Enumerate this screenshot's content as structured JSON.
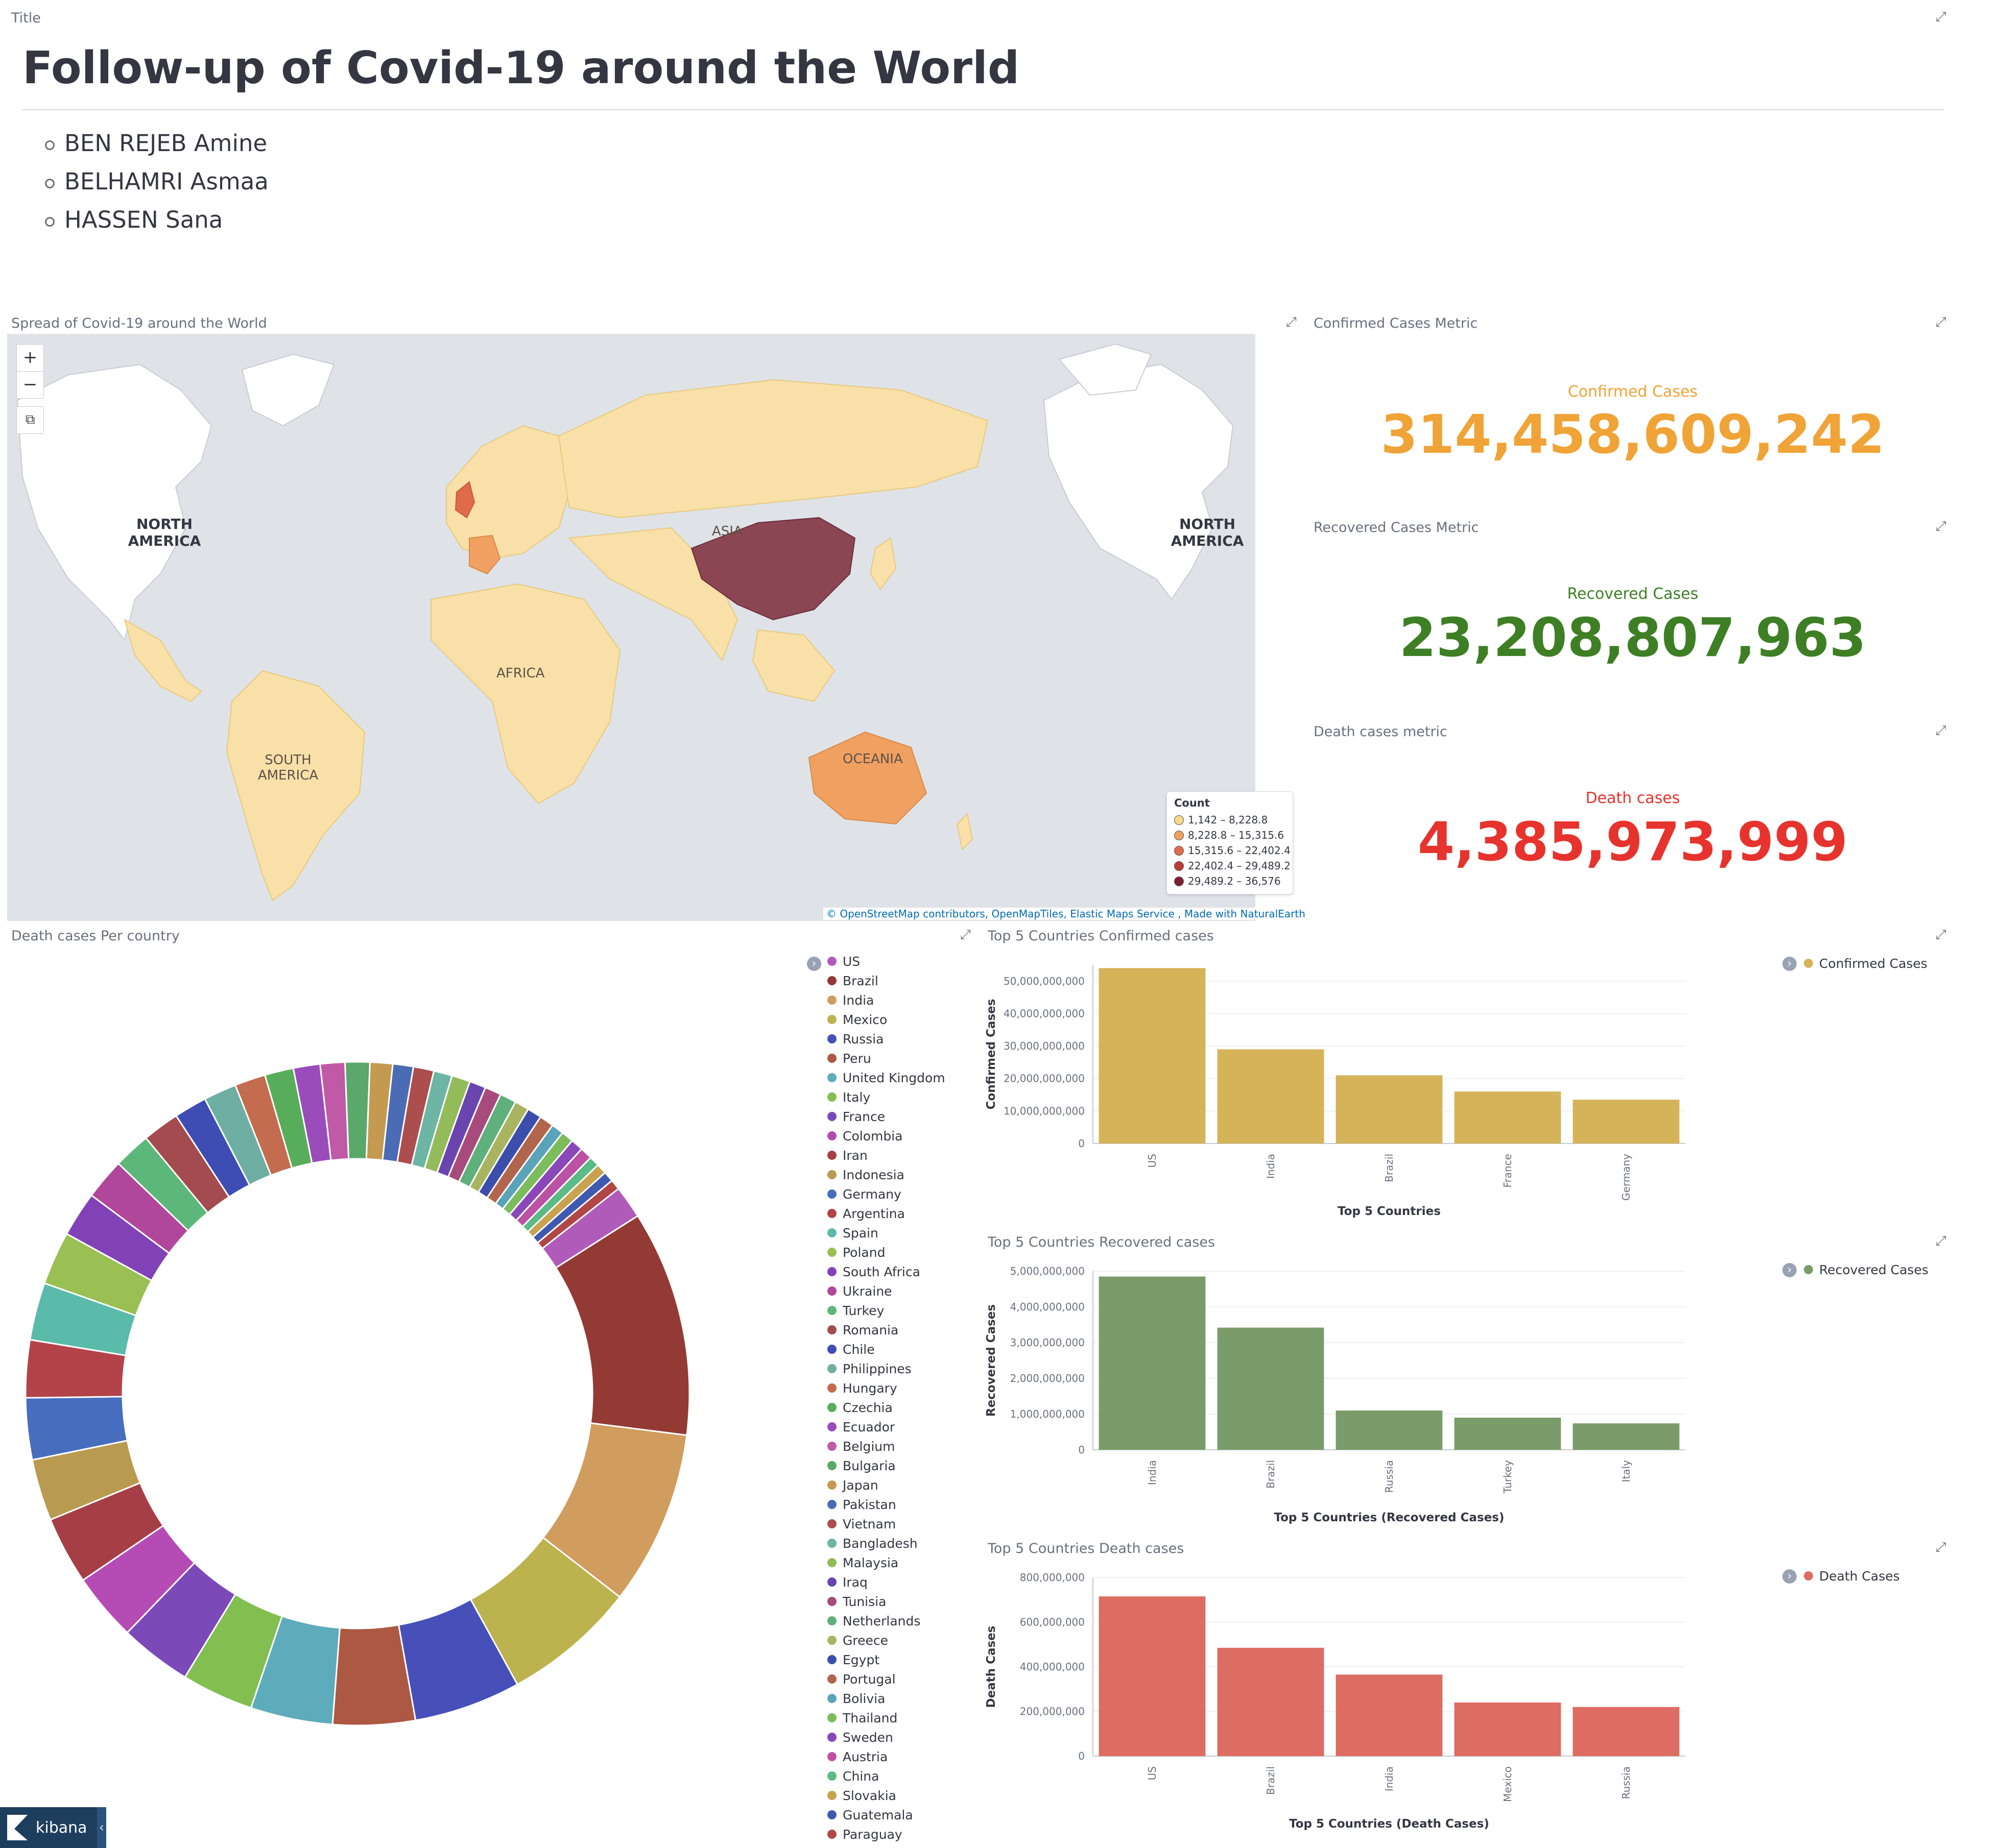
{
  "title_panel": {
    "label": "Title",
    "heading": "Follow-up of Covid-19 around the World",
    "authors": [
      "BEN REJEB Amine",
      "BELHAMRI Asmaa",
      "HASSEN Sana"
    ]
  },
  "map_panel": {
    "title": "Spread of Covid-19 around the World",
    "zoom_in": "+",
    "zoom_out": "−",
    "crop_icon": "crop-icon",
    "continent_labels": [
      "NORTH AMERICA",
      "ASIA",
      "AFRICA",
      "SOUTH AMERICA",
      "OCEANIA",
      "NORTH AMERICA"
    ],
    "legend": {
      "title": "Count",
      "items": [
        {
          "label": "1,142 – 8,228.8",
          "color": "#f5d88a"
        },
        {
          "label": "8,228.8 – 15,315.6",
          "color": "#f0a061"
        },
        {
          "label": "15,315.6 – 22,402.4",
          "color": "#e06b4b"
        },
        {
          "label": "22,402.4 – 29,489.2",
          "color": "#bf3a3a"
        },
        {
          "label": "29,489.2 – 36,576",
          "color": "#7d1e33"
        }
      ]
    },
    "attribution": "© OpenStreetMap contributors, OpenMapTiles, Elastic Maps Service , Made with NaturalEarth"
  },
  "metrics": {
    "confirmed": {
      "panel_title": "Confirmed Cases Metric",
      "label": "Confirmed Cases",
      "value": "314,458,609,242",
      "color": "#f0a336"
    },
    "recovered": {
      "panel_title": "Recovered Cases Metric",
      "label": "Recovered Cases",
      "value": "23,208,807,963",
      "color": "#3e7f25"
    },
    "death": {
      "panel_title": "Death cases metric",
      "label": "Death cases",
      "value": "4,385,973,999",
      "color": "#e7332d"
    }
  },
  "donut_panel": {
    "title": "Death cases Per country",
    "legend": [
      "US",
      "Brazil",
      "India",
      "Mexico",
      "Russia",
      "Peru",
      "United Kingdom",
      "Italy",
      "France",
      "Colombia",
      "Iran",
      "Indonesia",
      "Germany",
      "Argentina",
      "Spain",
      "Poland",
      "South Africa",
      "Ukraine",
      "Turkey",
      "Romania",
      "Chile",
      "Philippines",
      "Hungary",
      "Czechia",
      "Ecuador",
      "Belgium",
      "Bulgaria",
      "Japan",
      "Pakistan",
      "Vietnam",
      "Bangladesh",
      "Malaysia",
      "Iraq",
      "Tunisia",
      "Netherlands",
      "Greece",
      "Egypt",
      "Portugal",
      "Bolivia",
      "Thailand",
      "Sweden",
      "Austria",
      "China",
      "Slovakia",
      "Guatemala",
      "Paraguay"
    ],
    "palette": [
      "#b05bb9",
      "#933a35",
      "#d09d5f",
      "#bcb24e",
      "#4650b8",
      "#ac5843",
      "#5eabbb",
      "#82be50",
      "#7b4ab8",
      "#b54bb5",
      "#a63f45",
      "#b99a51",
      "#476dbf",
      "#b34348",
      "#5bbbaa",
      "#9abf53",
      "#8242b7",
      "#b0479a",
      "#5cb87a",
      "#a34b4f",
      "#3e4db3",
      "#6fafa3",
      "#c46c4f",
      "#58ad5a",
      "#9b4cbb",
      "#c05aa7",
      "#5aa86a",
      "#c39a50",
      "#4b6bb5",
      "#ac4e4e",
      "#6db5a4",
      "#93bb5a",
      "#6a45b0",
      "#a74a7c",
      "#5fb07c",
      "#a8b45f",
      "#3c4eac",
      "#b2654d",
      "#5ba3b8",
      "#7cbc5c",
      "#8a47b8",
      "#bc52a3",
      "#5abb86",
      "#c8a24f",
      "#4059b0",
      "#b04646"
    ]
  },
  "charts": [
    {
      "panel_title": "Top 5 Countries Confirmed cases",
      "legend_label": "Confirmed Cases",
      "color": "#d4b359",
      "chart_data": {
        "type": "bar",
        "categories": [
          "US",
          "India",
          "Brazil",
          "France",
          "Germany"
        ],
        "series": [
          {
            "name": "Confirmed Cases",
            "values": [
              54000000000,
              29000000000,
              21000000000,
              16000000000,
              13500000000
            ]
          }
        ],
        "xlabel": "Top 5 Countries",
        "ylabel": "Confirmed Cases",
        "ylim": [
          0,
          55000000000
        ],
        "ticks": [
          "0",
          "10,000,000,000",
          "20,000,000,000",
          "30,000,000,000",
          "40,000,000,000",
          "50,000,000,000"
        ],
        "tick_values": [
          0,
          10000000000,
          20000000000,
          30000000000,
          40000000000,
          50000000000
        ]
      }
    },
    {
      "panel_title": "Top 5 Countries Recovered cases",
      "legend_label": "Recovered Cases",
      "color": "#7a9c6a",
      "chart_data": {
        "type": "bar",
        "categories": [
          "India",
          "Brazil",
          "Russia",
          "Turkey",
          "Italy"
        ],
        "series": [
          {
            "name": "Recovered Cases",
            "values": [
              4850000000,
              3420000000,
              1100000000,
              900000000,
              740000000
            ]
          }
        ],
        "xlabel": "Top 5 Countries (Recovered Cases)",
        "ylabel": "Recovered Cases",
        "ylim": [
          0,
          5000000000
        ],
        "ticks": [
          "0",
          "1,000,000,000",
          "2,000,000,000",
          "3,000,000,000",
          "4,000,000,000",
          "5,000,000,000"
        ],
        "tick_values": [
          0,
          1000000000,
          2000000000,
          3000000000,
          4000000000,
          5000000000
        ]
      }
    },
    {
      "panel_title": "Top 5 Countries Death cases",
      "legend_label": "Death Cases",
      "color": "#dd6c63",
      "chart_data": {
        "type": "bar",
        "categories": [
          "US",
          "Brazil",
          "India",
          "Mexico",
          "Russia"
        ],
        "series": [
          {
            "name": "Death Cases",
            "values": [
              715000000,
              485000000,
              365000000,
              240000000,
              220000000
            ]
          }
        ],
        "xlabel": "Top 5 Countries (Death Cases)",
        "ylabel": "Death Cases",
        "ylim": [
          0,
          800000000
        ],
        "ticks": [
          "0",
          "200,000,000",
          "400,000,000",
          "600,000,000",
          "800,000,000"
        ],
        "tick_values": [
          0,
          200000000,
          400000000,
          600000000,
          800000000
        ]
      }
    }
  ],
  "kibana": {
    "label": "kibana",
    "collapse": "‹"
  }
}
